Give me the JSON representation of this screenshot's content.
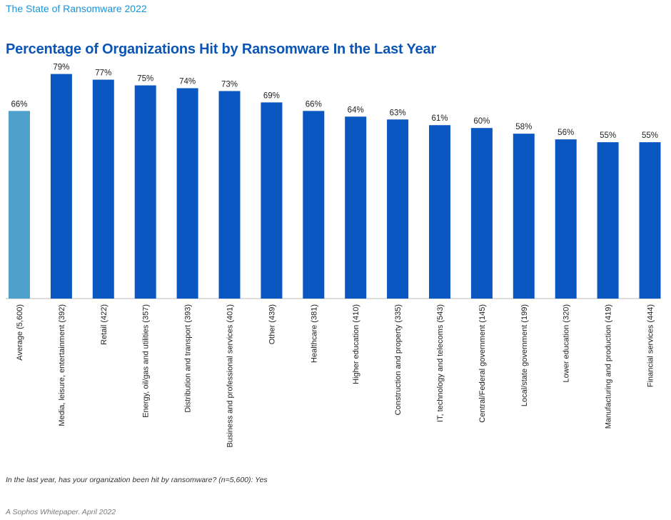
{
  "header": {
    "report_title": "The State of Ransomware 2022"
  },
  "chart_data": {
    "type": "bar",
    "title": "Percentage of Organizations Hit by Ransomware In the Last Year",
    "categories": [
      "Average (5,600)",
      "Media, leisure, entertainment (392)",
      "Retail (422)",
      "Energy, oil/gas and utilities (357)",
      "Distribution and transport (393)",
      "Business and professional services (401)",
      "Other (439)",
      "Healthcare (381)",
      "Higher education (410)",
      "Construction and property (335)",
      "IT, technology and telecoms (543)",
      "Central/Federal government (145)",
      "Local/state government (199)",
      "Lower education (320)",
      "Manufacturing and production (419)",
      "Financial services (444)"
    ],
    "values": [
      66,
      79,
      77,
      75,
      74,
      73,
      69,
      66,
      64,
      63,
      61,
      60,
      58,
      56,
      55,
      55
    ],
    "data_labels": [
      "66%",
      "79%",
      "77%",
      "75%",
      "74%",
      "73%",
      "69%",
      "66%",
      "64%",
      "63%",
      "61%",
      "60%",
      "58%",
      "56%",
      "55%",
      "55%"
    ],
    "ylim": [
      0,
      100
    ],
    "colors": {
      "average": "#4fa1cc",
      "sector": "#0b57c2",
      "axis": "#bbbbbb"
    },
    "grid": false
  },
  "footnote": "In the last year, has your organization been hit by ransomware? (n=5,600): Yes",
  "source": "A Sophos Whitepaper. April 2022"
}
